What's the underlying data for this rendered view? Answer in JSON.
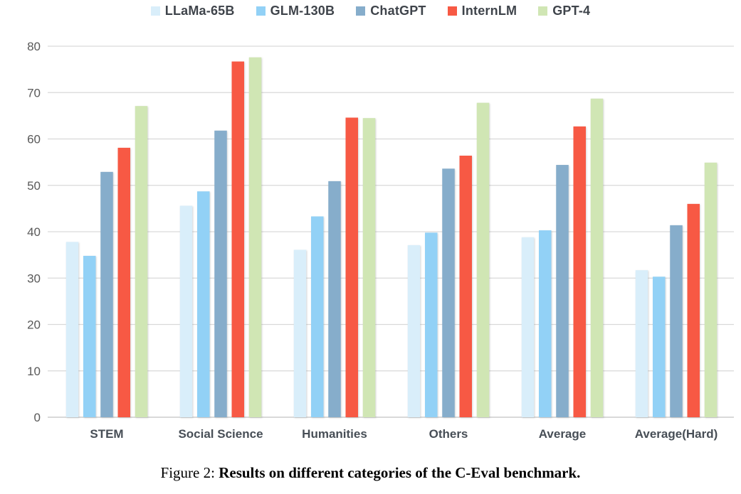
{
  "chart_data": {
    "type": "bar",
    "title": "",
    "xlabel": "",
    "ylabel": "",
    "categories": [
      "STEM",
      "Social Science",
      "Humanities",
      "Others",
      "Average",
      "Average(Hard)"
    ],
    "series": [
      {
        "name": "LLaMa-65B",
        "color": "#D9EEFA",
        "values": [
          37.8,
          45.6,
          36.1,
          37.1,
          38.8,
          31.7
        ]
      },
      {
        "name": "GLM-130B",
        "color": "#92D1F6",
        "values": [
          34.8,
          48.7,
          43.3,
          39.8,
          40.3,
          30.3
        ]
      },
      {
        "name": "ChatGPT",
        "color": "#86ADCB",
        "values": [
          52.9,
          61.8,
          50.9,
          53.6,
          54.4,
          41.4
        ]
      },
      {
        "name": "InternLM",
        "color": "#F75944",
        "values": [
          58.1,
          76.7,
          64.6,
          56.4,
          62.7,
          46.0
        ]
      },
      {
        "name": "GPT-4",
        "color": "#D0E6B4",
        "values": [
          67.1,
          77.6,
          64.5,
          67.8,
          68.7,
          54.9
        ]
      }
    ],
    "ylim": [
      0,
      80
    ],
    "yticks": [
      0,
      10,
      20,
      30,
      40,
      50,
      60,
      70,
      80
    ],
    "grid": true,
    "legend_position": "top"
  },
  "colors": {
    "gridline": "#D9D9D9",
    "axis_line": "#C2C2C2",
    "tick_label": "#595959",
    "category_label": "#474E56",
    "legend_label": "#3F444B",
    "background": "#FFFFFF"
  },
  "caption": {
    "prefix": "Figure 2: ",
    "text": "Results on different categories of the C-Eval benchmark."
  }
}
